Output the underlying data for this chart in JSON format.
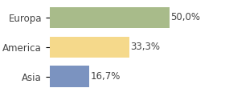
{
  "categories": [
    "Europa",
    "America",
    "Asia"
  ],
  "values": [
    50.0,
    33.3,
    16.7
  ],
  "labels": [
    "50,0%",
    "33,3%",
    "16,7%"
  ],
  "bar_colors": [
    "#a8bb8a",
    "#f5d98b",
    "#7b93c0"
  ],
  "background_color": "#ffffff",
  "xlim": [
    0,
    62
  ],
  "bar_height": 0.72,
  "label_fontsize": 8.5,
  "category_fontsize": 8.5,
  "label_color": "#444444",
  "tick_color": "#444444"
}
